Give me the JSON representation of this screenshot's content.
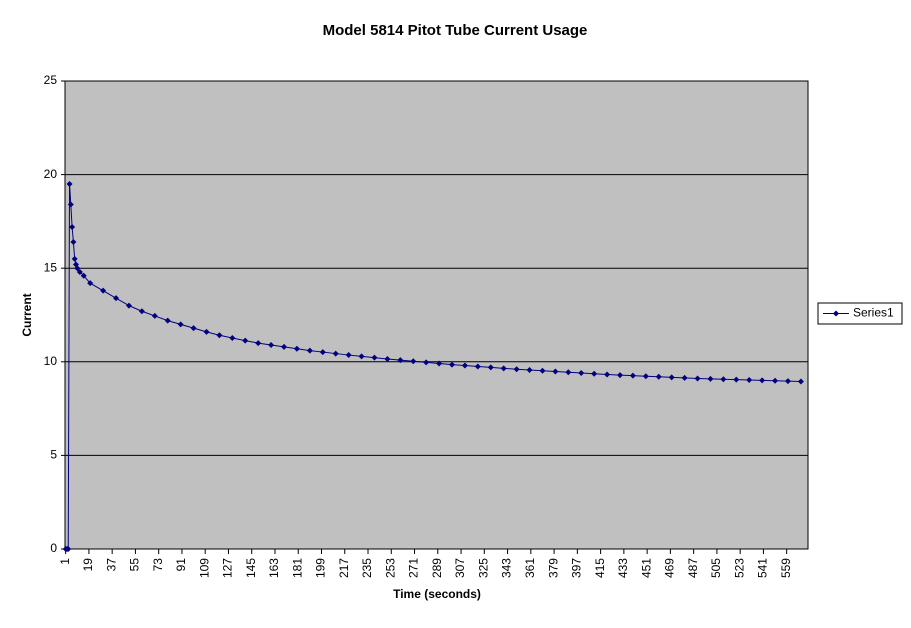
{
  "chart_data": {
    "type": "line",
    "title": "Model 5814 Pitot Tube Current Usage",
    "x_label": "Time (seconds)",
    "y_label": "Current",
    "x": [
      1,
      2,
      3,
      4,
      5,
      6,
      7,
      8,
      9,
      10,
      12,
      15,
      20,
      30,
      40,
      50,
      60,
      70,
      80,
      90,
      100,
      110,
      120,
      130,
      140,
      150,
      160,
      170,
      180,
      190,
      200,
      210,
      220,
      230,
      240,
      250,
      260,
      270,
      280,
      290,
      300,
      310,
      320,
      330,
      340,
      350,
      360,
      370,
      380,
      390,
      400,
      410,
      420,
      430,
      440,
      450,
      460,
      470,
      480,
      490,
      500,
      510,
      520,
      530,
      540,
      550,
      560,
      570
    ],
    "series": [
      {
        "name": "Series1",
        "color": "#000080",
        "values": [
          0,
          0,
          0,
          19.5,
          18.4,
          17.2,
          16.4,
          15.5,
          15.2,
          15.0,
          14.8,
          14.6,
          14.2,
          13.8,
          13.4,
          13.0,
          12.7,
          12.45,
          12.2,
          12.0,
          11.8,
          11.6,
          11.42,
          11.27,
          11.13,
          11.0,
          10.9,
          10.8,
          10.7,
          10.6,
          10.52,
          10.44,
          10.36,
          10.29,
          10.22,
          10.15,
          10.09,
          10.03,
          9.97,
          9.91,
          9.85,
          9.8,
          9.75,
          9.7,
          9.65,
          9.6,
          9.56,
          9.52,
          9.48,
          9.44,
          9.4,
          9.36,
          9.32,
          9.29,
          9.26,
          9.23,
          9.2,
          9.17,
          9.14,
          9.11,
          9.09,
          9.07,
          9.05,
          9.03,
          9.01,
          8.99,
          8.97,
          8.95
        ]
      }
    ],
    "xlim": [
      0.5,
      575.5
    ],
    "xticks": [
      1,
      19,
      37,
      55,
      73,
      91,
      109,
      127,
      145,
      163,
      181,
      199,
      217,
      235,
      253,
      271,
      289,
      307,
      325,
      343,
      361,
      379,
      397,
      415,
      433,
      451,
      469,
      487,
      505,
      523,
      541,
      559
    ],
    "ylim": [
      0,
      25
    ],
    "yticks": [
      0,
      5,
      10,
      15,
      20,
      25
    ],
    "grid": true,
    "plot_background": "#c0c0c0",
    "legend": "right"
  }
}
